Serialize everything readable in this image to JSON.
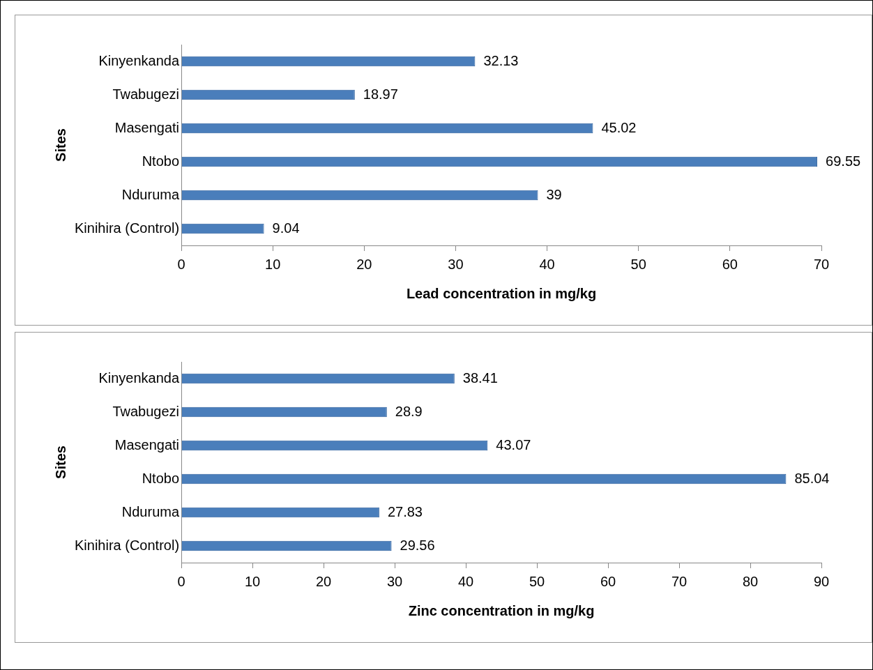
{
  "chart_data": [
    {
      "type": "bar",
      "orientation": "horizontal",
      "categories": [
        "Kinyenkanda",
        "Twabugezi",
        "Masengati",
        "Ntobo",
        "Nduruma",
        "Kinihira (Control)"
      ],
      "values": [
        32.13,
        18.97,
        45.02,
        69.55,
        39,
        9.04
      ],
      "color": "#4a7ebb",
      "data_labels": true,
      "xlim": [
        0,
        70
      ],
      "xticks": [
        0,
        10,
        20,
        30,
        40,
        50,
        60,
        70
      ],
      "xlabel": "Lead concentration in mg/kg",
      "ylabel": "Sites",
      "grid": false,
      "legend": false
    },
    {
      "type": "bar",
      "orientation": "horizontal",
      "categories": [
        "Kinyenkanda",
        "Twabugezi",
        "Masengati",
        "Ntobo",
        "Nduruma",
        "Kinihira (Control)"
      ],
      "values": [
        38.41,
        28.9,
        43.07,
        85.04,
        27.83,
        29.56
      ],
      "color": "#4a7ebb",
      "data_labels": true,
      "xlim": [
        0,
        90
      ],
      "xticks": [
        0,
        10,
        20,
        30,
        40,
        50,
        60,
        70,
        80,
        90
      ],
      "xlabel": "Zinc concentration in mg/kg",
      "ylabel": "Sites",
      "grid": false,
      "legend": false
    }
  ]
}
